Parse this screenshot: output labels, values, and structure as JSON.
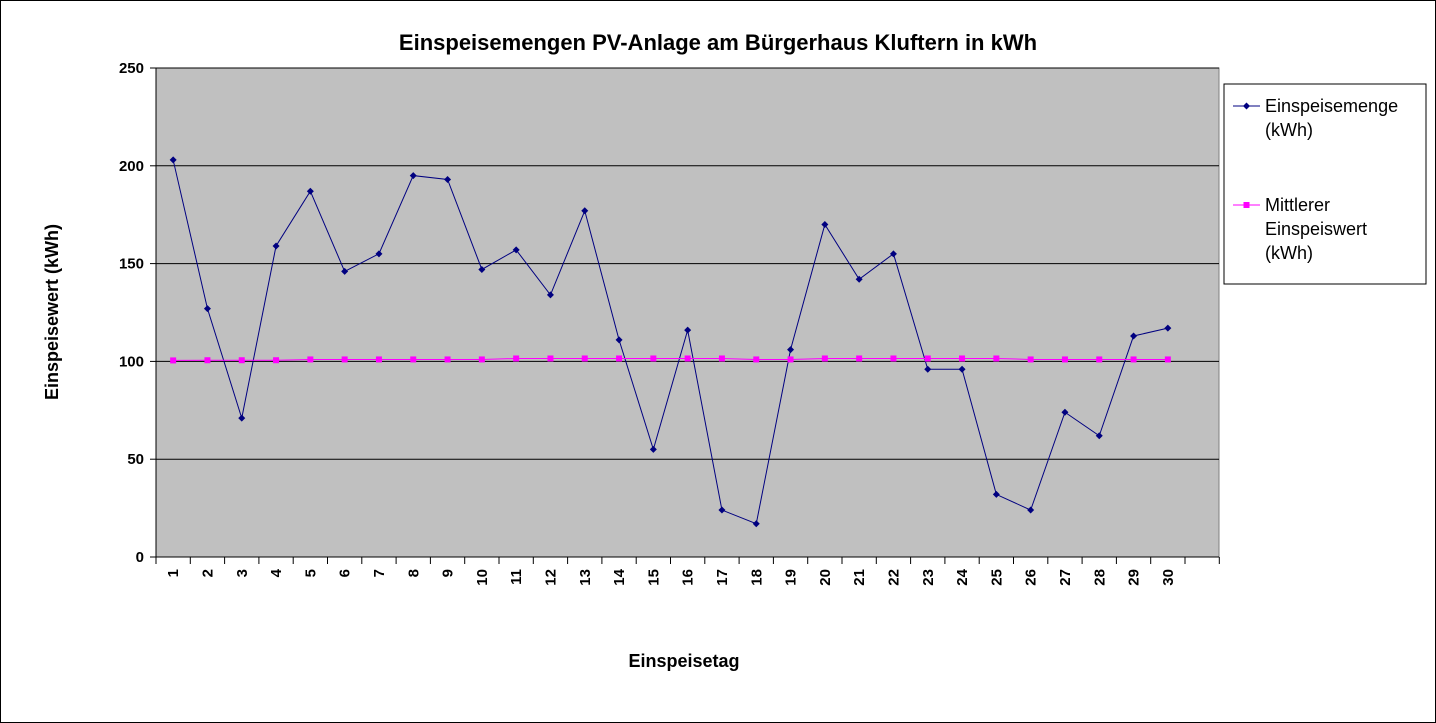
{
  "chart_data": {
    "type": "line",
    "title": "Einspeisemengen PV-Anlage am Bürgerhaus Kluftern in kWh",
    "xlabel": "Einspeisetag",
    "ylabel": "Einspeisewert (kWh)",
    "ylim": [
      0,
      250
    ],
    "yticks": [
      "0",
      "50",
      "100",
      "150",
      "200",
      "250"
    ],
    "ytick_values": [
      0,
      50,
      100,
      150,
      200,
      250
    ],
    "categories": [
      "1",
      "2",
      "3",
      "4",
      "5",
      "6",
      "7",
      "8",
      "9",
      "10",
      "11",
      "12",
      "13",
      "14",
      "15",
      "16",
      "17",
      "18",
      "19",
      "20",
      "21",
      "22",
      "23",
      "24",
      "25",
      "26",
      "27",
      "28",
      "29",
      "30"
    ],
    "grid": true,
    "legend_position": "right",
    "series": [
      {
        "name": "Einspeisemenge (kWh)",
        "legend_lines": [
          "Einspeisemenge",
          "(kWh)"
        ],
        "color": "#000080",
        "marker": "diamond",
        "values": [
          203,
          127,
          71,
          159,
          187,
          146,
          155,
          195,
          193,
          147,
          157,
          134,
          177,
          111,
          55,
          116,
          24,
          17,
          106,
          170,
          142,
          155,
          96,
          96,
          32,
          24,
          74,
          62,
          113,
          117
        ]
      },
      {
        "name": "Mittlerer Einspeiswert (kWh)",
        "legend_lines": [
          "Mittlerer",
          "Einspeiswert",
          "(kWh)"
        ],
        "color": "#FF00FF",
        "marker": "square",
        "values": [
          100.5,
          100.6,
          100.6,
          100.6,
          101,
          101,
          101,
          101,
          101,
          101,
          101.5,
          101.5,
          101.5,
          101.5,
          101.5,
          101.5,
          101.5,
          101,
          101,
          101.5,
          101.5,
          101.5,
          101.5,
          101.5,
          101.5,
          101,
          101,
          101,
          101,
          101
        ]
      }
    ],
    "colors": {
      "plot_background": "#C0C0C0",
      "gridline": "#000000"
    }
  }
}
